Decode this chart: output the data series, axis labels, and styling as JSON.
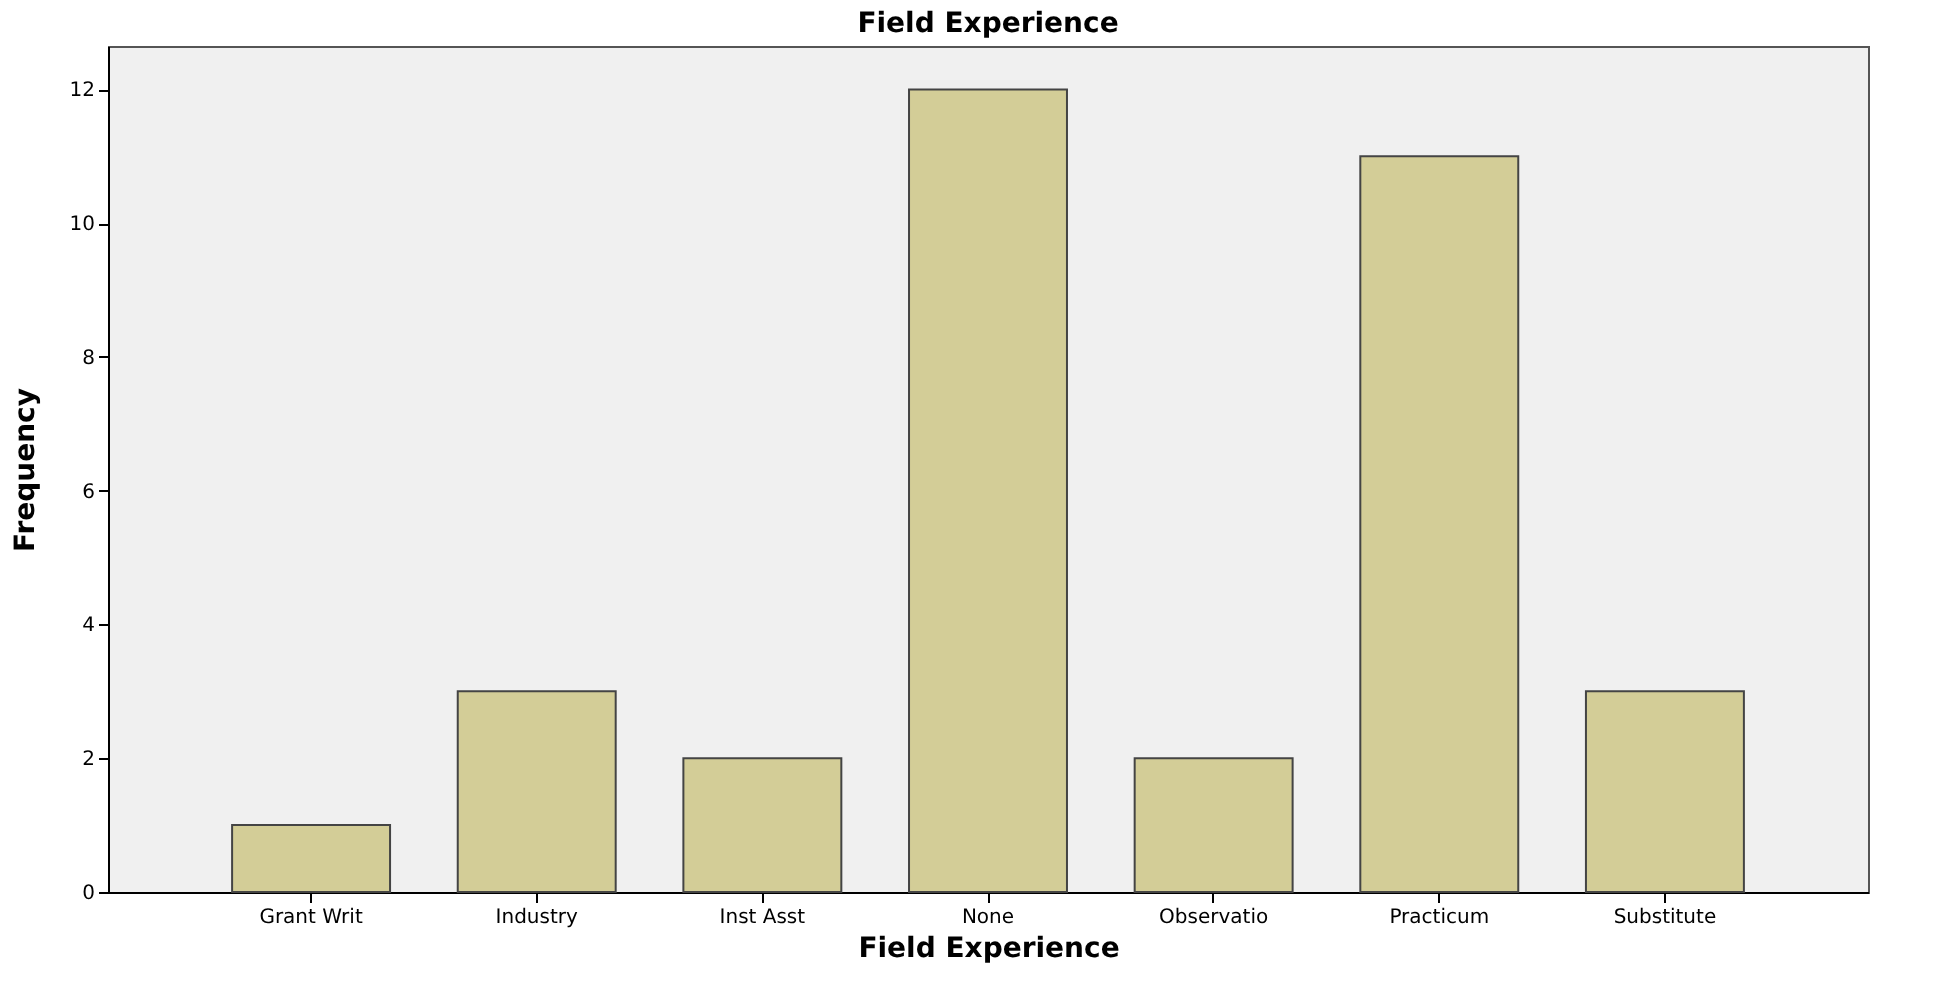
{
  "chart_data": {
    "type": "bar",
    "title": "Field Experience",
    "xlabel": "Field Experience",
    "ylabel": "Frequency",
    "categories": [
      "Grant Writ",
      "Industry",
      "Inst Asst",
      "None",
      "Observatio",
      "Practicum",
      "Substitute"
    ],
    "values": [
      1,
      3,
      2,
      12,
      2,
      11,
      3
    ],
    "color": "#d3cd97",
    "ylim": [
      0,
      12.65
    ],
    "yticks": [
      0,
      2,
      4,
      6,
      8,
      10,
      12
    ],
    "grid": false
  }
}
